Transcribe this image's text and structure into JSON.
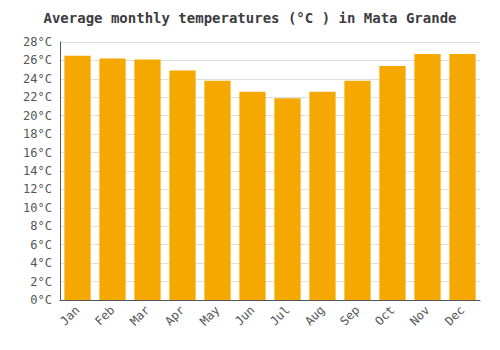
{
  "chart_data": {
    "type": "bar",
    "title": "Average monthly temperatures (°C ) in Mata Grande",
    "categories": [
      "Jan",
      "Feb",
      "Mar",
      "Apr",
      "May",
      "Jun",
      "Jul",
      "Aug",
      "Sep",
      "Oct",
      "Nov",
      "Dec"
    ],
    "values": [
      26.5,
      26.2,
      26.1,
      24.9,
      23.8,
      22.6,
      21.9,
      22.6,
      23.8,
      25.4,
      26.7,
      26.7
    ],
    "color": "#F5A800",
    "ylim": [
      0,
      28
    ],
    "yticks": [
      {
        "value": 0,
        "label": "0°C"
      },
      {
        "value": 2,
        "label": "2°C"
      },
      {
        "value": 4,
        "label": "4°C"
      },
      {
        "value": 6,
        "label": "6°C"
      },
      {
        "value": 8,
        "label": "8°C"
      },
      {
        "value": 10,
        "label": "10°C"
      },
      {
        "value": 12,
        "label": "12°C"
      },
      {
        "value": 14,
        "label": "14°C"
      },
      {
        "value": 16,
        "label": "16°C"
      },
      {
        "value": 18,
        "label": "18°C"
      },
      {
        "value": 20,
        "label": "20°C"
      },
      {
        "value": 22,
        "label": "22°C"
      },
      {
        "value": 24,
        "label": "24°C"
      },
      {
        "value": 26,
        "label": "26°C"
      },
      {
        "value": 28,
        "label": "28°C"
      }
    ],
    "grid": true
  }
}
